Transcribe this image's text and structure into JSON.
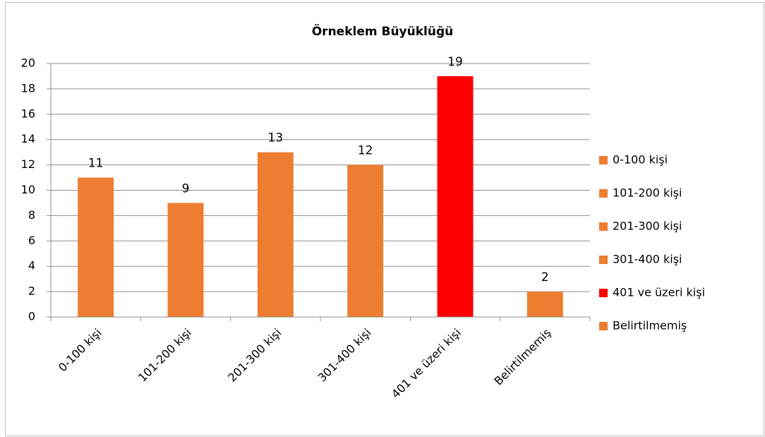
{
  "chart_data": {
    "type": "bar",
    "title": "Örneklem Büyüklüğü",
    "categories": [
      "0-100 kişi",
      "101-200 kişi",
      "201-300 kişi",
      "301-400 kişi",
      "401 ve üzeri kişi",
      "Belirtilmemiş"
    ],
    "values": [
      11,
      9,
      13,
      12,
      19,
      2
    ],
    "colors": [
      "#ed7d31",
      "#ed7d31",
      "#ed7d31",
      "#ed7d31",
      "#ff0000",
      "#ed7d31"
    ],
    "ylim": [
      0,
      20
    ],
    "yticks": [
      0,
      2,
      4,
      6,
      8,
      10,
      12,
      14,
      16,
      18,
      20
    ],
    "grid": true,
    "legend": "right"
  }
}
